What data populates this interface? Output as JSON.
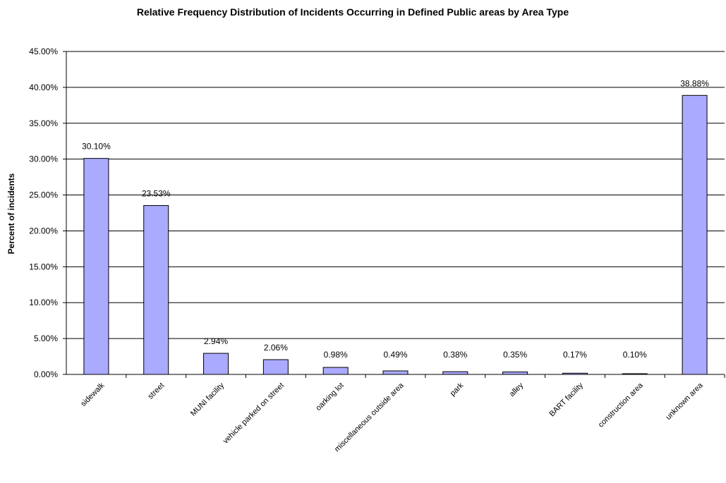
{
  "chart_data": {
    "type": "bar",
    "title": "Relative Frequency Distribution of Incidents Occurring in Defined Public areas by Area Type",
    "xlabel": "",
    "ylabel": "Percent of incidents",
    "ylim": [
      0,
      45
    ],
    "ytick_step": 5,
    "ytick_labels": [
      "0.00%",
      "5.00%",
      "10.00%",
      "15.00%",
      "20.00%",
      "25.00%",
      "30.00%",
      "35.00%",
      "40.00%",
      "45.00%"
    ],
    "grid": true,
    "legend": "none",
    "bar_color": "#aaaaff",
    "categories": [
      "sidewalk",
      "street",
      "MUNI facility",
      "vehicle parked on street",
      "oarking lot",
      "miscellaneous outside area",
      "park",
      "alley",
      "BART facility",
      "construction area",
      "unknown area"
    ],
    "values": [
      30.1,
      23.53,
      2.94,
      2.06,
      0.98,
      0.49,
      0.38,
      0.35,
      0.17,
      0.1,
      38.88
    ],
    "data_labels": [
      "30.10%",
      "23.53%",
      "2.94%",
      "2.06%",
      "0.98%",
      "0.49%",
      "0.38%",
      "0.35%",
      "0.17%",
      "0.10%",
      "38.88%"
    ]
  }
}
